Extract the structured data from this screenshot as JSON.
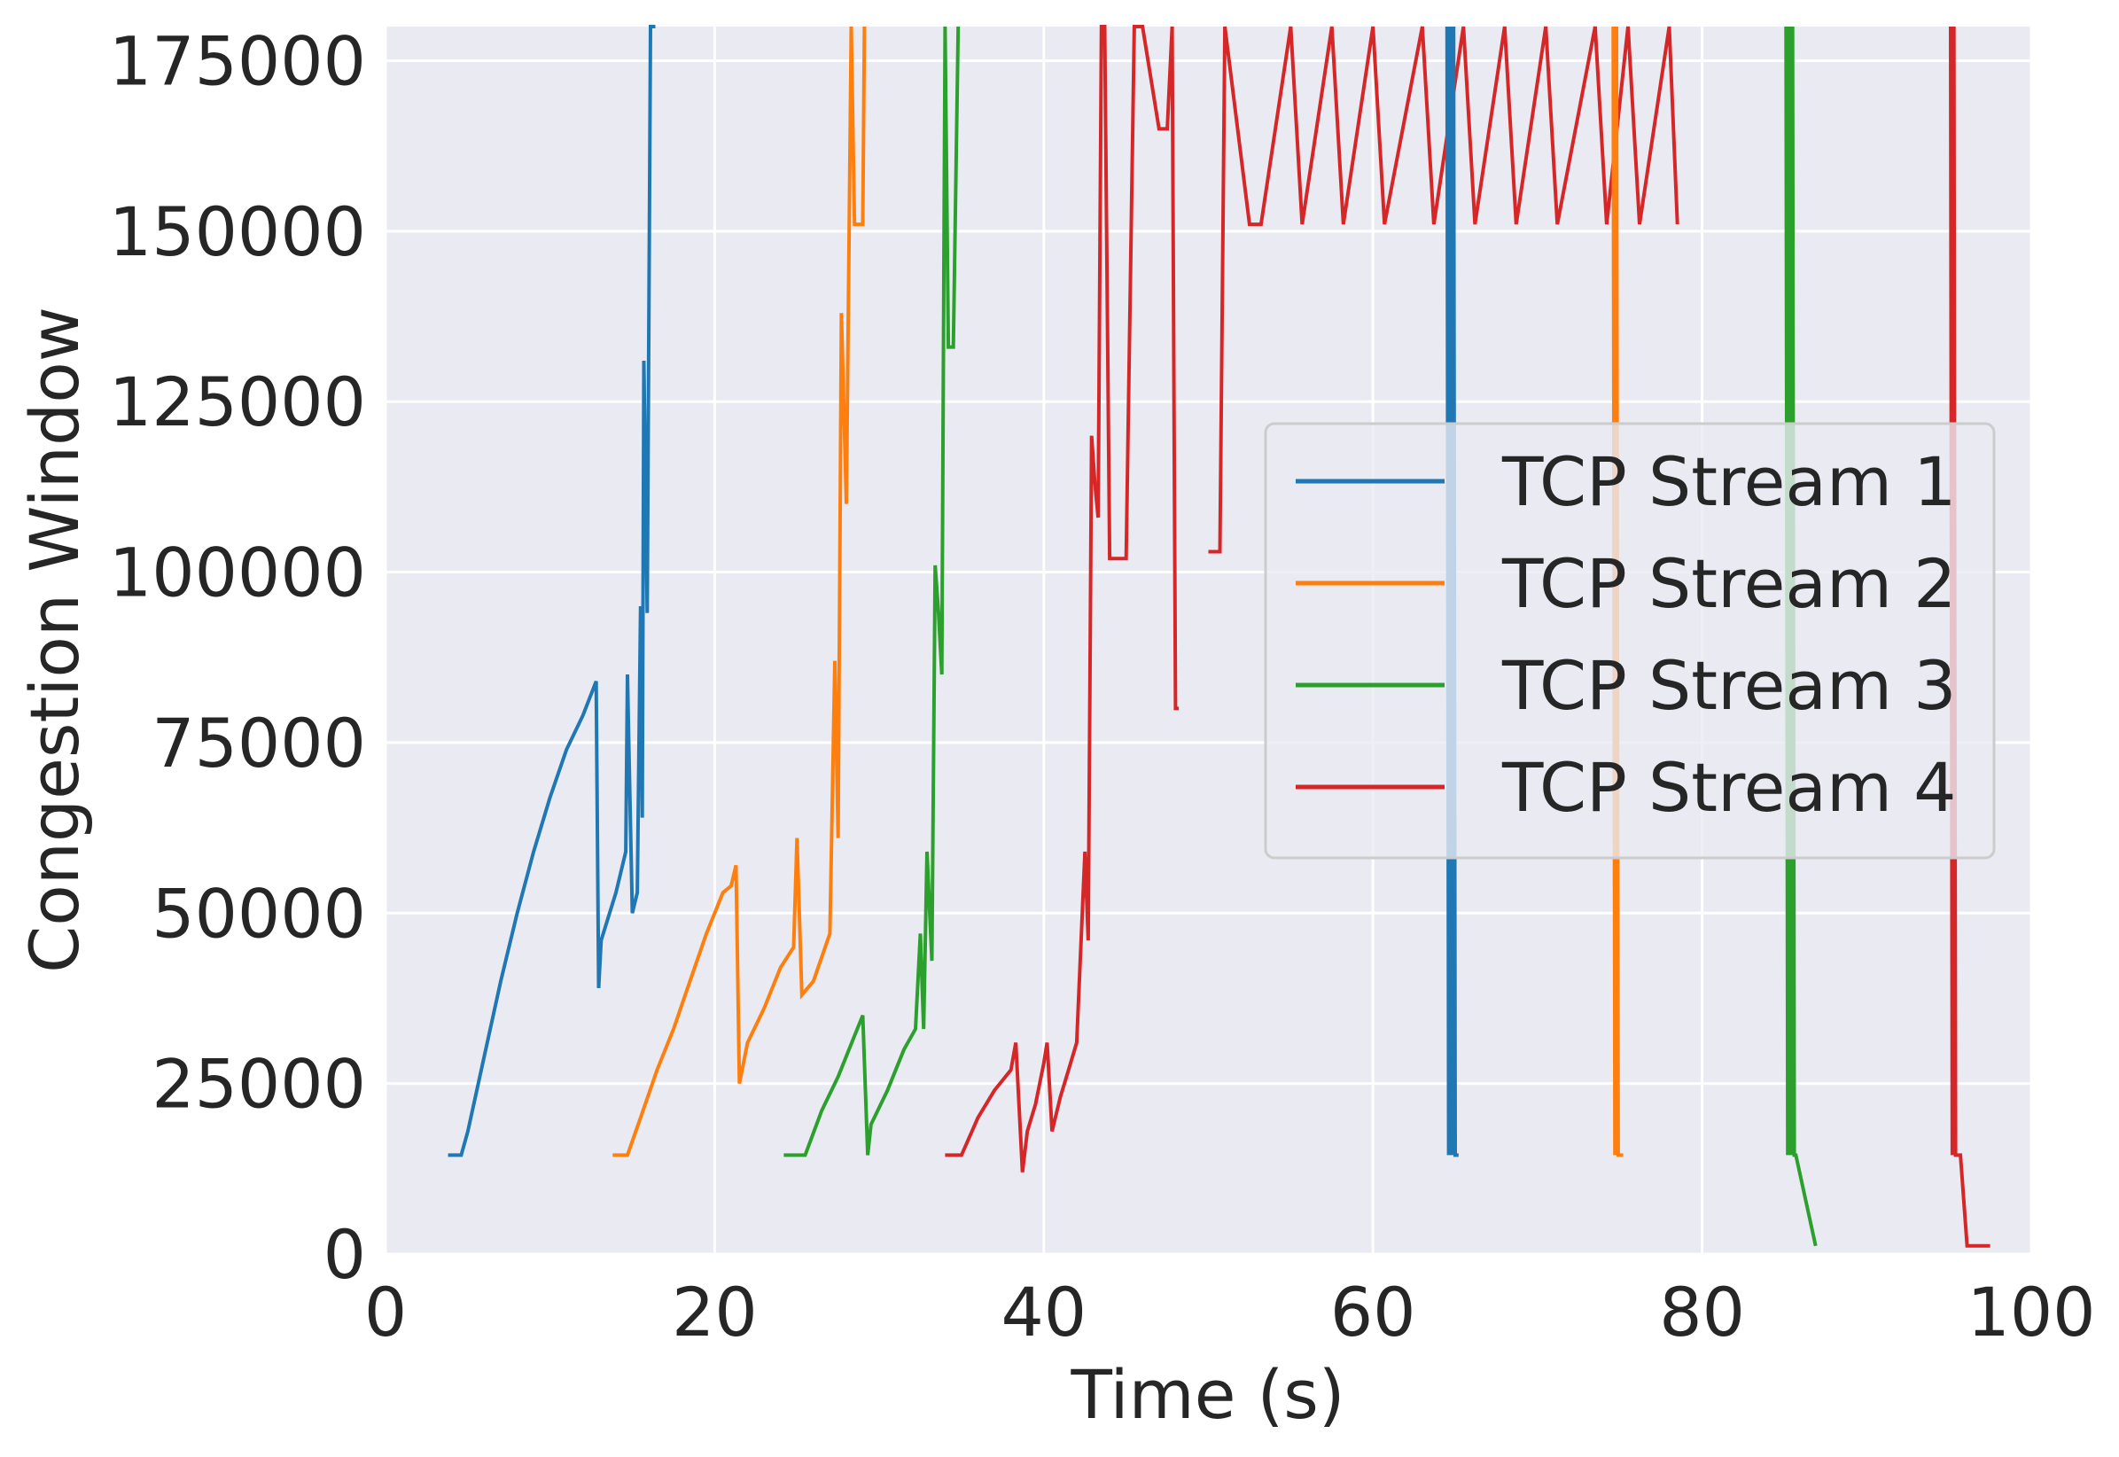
{
  "chart_data": {
    "type": "line",
    "title": "",
    "xlabel": "Time (s)",
    "ylabel": "Congestion Window",
    "xlim": [
      0,
      100
    ],
    "ylim": [
      0,
      180000
    ],
    "xticks": [
      0,
      20,
      40,
      60,
      80,
      100
    ],
    "yticks": [
      0,
      25000,
      50000,
      75000,
      100000,
      125000,
      150000,
      175000
    ],
    "xtick_labels": [
      "0",
      "20",
      "40",
      "60",
      "80",
      "100"
    ],
    "ytick_labels": [
      "0",
      "25000",
      "50000",
      "75000",
      "100000",
      "125000",
      "150000",
      "175000"
    ],
    "grid": true,
    "legend_position": "center-right",
    "series": [
      {
        "name": "TCP Stream 1",
        "color": "#1f77b4",
        "x": [
          3.8,
          4.6,
          5.0,
          6.0,
          7.0,
          8.0,
          9.0,
          10.0,
          11.0,
          12.0,
          12.8,
          12.95,
          13.1,
          14.0,
          14.6,
          14.7,
          14.8,
          15.0,
          15.3,
          15.5,
          15.6,
          15.7,
          15.9,
          16.1,
          16.2,
          16.4
        ],
        "y": [
          14500,
          14500,
          18000,
          29000,
          40000,
          50000,
          59000,
          67000,
          74000,
          79000,
          84000,
          39000,
          46000,
          53000,
          59000,
          85000,
          73000,
          50000,
          53000,
          95000,
          64000,
          131000,
          94000,
          180000,
          180000,
          180000
        ]
      },
      {
        "name": "TCP Stream 2",
        "color": "#ff7f0e",
        "x": [
          13.8,
          14.7,
          15.5,
          16.5,
          17.5,
          18.5,
          19.5,
          20.5,
          21.0,
          21.3,
          21.5,
          22.0,
          23.0,
          24.0,
          24.8,
          25.0,
          25.3,
          26.0,
          27.0,
          27.3,
          27.5,
          27.7,
          28.0,
          28.3,
          28.5,
          29.0,
          29.1
        ],
        "y": [
          14500,
          14500,
          20000,
          27000,
          33000,
          40000,
          47000,
          53000,
          54000,
          57000,
          25000,
          31000,
          36000,
          42000,
          45000,
          61000,
          38000,
          40000,
          47000,
          87000,
          61000,
          138000,
          110000,
          180000,
          151000,
          151000,
          180000
        ]
      },
      {
        "name": "TCP Stream 3",
        "color": "#2ca02c",
        "x": [
          24.2,
          25.5,
          26.5,
          27.5,
          28.5,
          29.0,
          29.3,
          29.5,
          30.5,
          31.5,
          32.2,
          32.5,
          32.7,
          32.9,
          33.2,
          33.4,
          33.6,
          33.8,
          34.0,
          34.2,
          34.5,
          34.8
        ],
        "y": [
          14500,
          14500,
          21000,
          26000,
          32000,
          35000,
          14500,
          19000,
          24000,
          30000,
          33000,
          47000,
          33000,
          59000,
          43000,
          101000,
          94000,
          85000,
          180000,
          133000,
          133000,
          180000
        ]
      },
      {
        "name": "TCP Stream 3",
        "color": "#2ca02c",
        "x": [
          85.1,
          85.2,
          85.3,
          85.4,
          85.5,
          85.6,
          85.7,
          86.9
        ],
        "y": [
          180000,
          14500,
          180000,
          14500,
          180000,
          14500,
          14500,
          1200
        ]
      },
      {
        "name": "TCP Stream 4",
        "color": "#d62728",
        "x": [
          34.0,
          35.0,
          36.0,
          37.0,
          38.0,
          38.3,
          38.7,
          39.0,
          39.5,
          40.0,
          40.2,
          40.5,
          41.0,
          41.5,
          42.0,
          42.5,
          42.7,
          42.9,
          43.1,
          43.3,
          43.5,
          43.7,
          44.0,
          45.0,
          45.5,
          46.0,
          47.0,
          47.5,
          47.8,
          48.0,
          48.2
        ],
        "y": [
          14500,
          14500,
          20000,
          24000,
          27000,
          31000,
          12000,
          18000,
          22000,
          28000,
          31000,
          18000,
          23000,
          27000,
          31000,
          59000,
          46000,
          120000,
          113000,
          108000,
          180000,
          180000,
          102000,
          102000,
          180000,
          180000,
          165000,
          165000,
          180000,
          80000,
          80000
        ]
      },
      {
        "name": "TCP Stream 4",
        "color": "#d62728",
        "x": [
          50.0,
          50.7,
          51.0,
          52.5,
          53.2,
          55.0,
          55.7,
          57.5,
          58.2,
          60.0,
          60.7,
          63.0,
          63.7,
          65.5,
          66.2,
          68.0,
          68.7,
          70.5,
          71.2,
          73.5,
          74.2,
          75.5,
          76.2,
          78.0,
          78.5
        ],
        "y": [
          103000,
          103000,
          180000,
          151000,
          151000,
          180000,
          151000,
          180000,
          151000,
          180000,
          151000,
          180000,
          151000,
          180000,
          151000,
          180000,
          151000,
          180000,
          151000,
          180000,
          151000,
          180000,
          151000,
          180000,
          151000
        ]
      },
      {
        "name": "TCP Stream 4",
        "color": "#d62728",
        "x": [
          95.1,
          95.2,
          95.3,
          95.4,
          95.7,
          96.1,
          97.5
        ],
        "y": [
          180000,
          14500,
          180000,
          14500,
          14500,
          1200,
          1200
        ]
      },
      {
        "name": "TCP Stream 1",
        "color": "#1f77b4",
        "x": [
          64.5,
          64.6,
          64.7,
          64.8,
          64.9,
          65.0,
          65.2
        ],
        "y": [
          180000,
          14500,
          180000,
          14500,
          180000,
          14500,
          14500
        ]
      },
      {
        "name": "TCP Stream 2",
        "color": "#ff7f0e",
        "x": [
          74.6,
          74.7,
          74.8,
          74.9,
          75.0,
          75.2
        ],
        "y": [
          180000,
          14500,
          180000,
          14500,
          14500,
          14500
        ]
      }
    ],
    "legend": [
      {
        "label": "TCP Stream 1",
        "color": "#1f77b4"
      },
      {
        "label": "TCP Stream 2",
        "color": "#ff7f0e"
      },
      {
        "label": "TCP Stream 3",
        "color": "#2ca02c"
      },
      {
        "label": "TCP Stream 4",
        "color": "#d62728"
      }
    ]
  }
}
